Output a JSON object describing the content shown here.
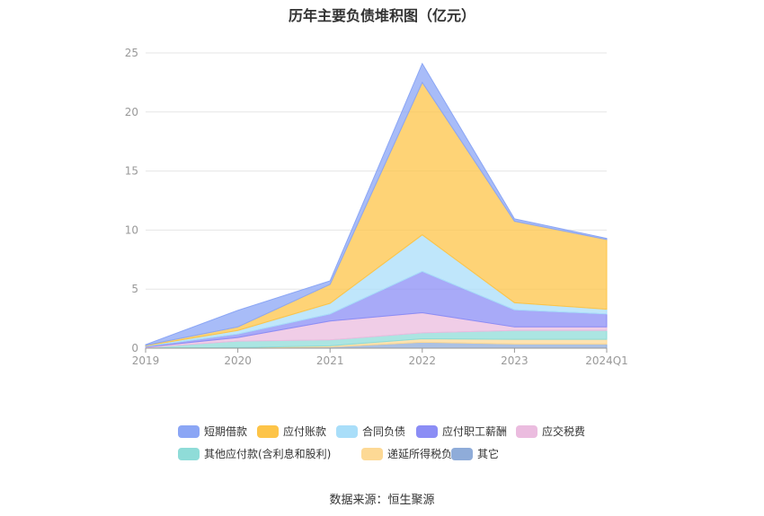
{
  "chart_data": {
    "type": "area",
    "stacked": true,
    "title": "历年主要负债堆积图（亿元）",
    "x": [
      "2019",
      "2020",
      "2021",
      "2022",
      "2023",
      "2024Q1"
    ],
    "ylim": [
      0,
      25
    ],
    "yticks": [
      0,
      5,
      10,
      15,
      20,
      25
    ],
    "grid": true,
    "legend_position": "bottom",
    "series": [
      {
        "name": "其它",
        "color": "#8facd9",
        "values": [
          0.0,
          0.05,
          0.1,
          0.5,
          0.35,
          0.35
        ]
      },
      {
        "name": "递延所得税负债",
        "color": "#fdd995",
        "values": [
          0.0,
          0.0,
          0.1,
          0.3,
          0.4,
          0.4
        ]
      },
      {
        "name": "其他应付款(含利息和股利)",
        "color": "#8fdcd8",
        "values": [
          0.05,
          0.55,
          0.5,
          0.5,
          0.75,
          0.75
        ]
      },
      {
        "name": "应交税费",
        "color": "#ebbcdf",
        "values": [
          0.05,
          0.3,
          1.6,
          1.7,
          0.3,
          0.3
        ]
      },
      {
        "name": "应付职工薪酬",
        "color": "#8b8df5",
        "values": [
          0.05,
          0.3,
          0.6,
          3.5,
          1.45,
          1.1
        ]
      },
      {
        "name": "合同负债",
        "color": "#a9def9",
        "values": [
          0.05,
          0.3,
          0.9,
          3.1,
          0.6,
          0.4
        ]
      },
      {
        "name": "应付账款",
        "color": "#fdc448",
        "values": [
          0.05,
          0.3,
          1.6,
          12.9,
          6.9,
          5.9
        ]
      },
      {
        "name": "短期借款",
        "color": "#8ba6f5",
        "values": [
          0.05,
          1.4,
          0.3,
          1.6,
          0.2,
          0.1
        ]
      }
    ],
    "legend_order": [
      "短期借款",
      "应付账款",
      "合同负债",
      "应付职工薪酬",
      "应交税费",
      "其他应付款(含利息和股利)",
      "递延所得税负债",
      "其它"
    ]
  },
  "source_text": "数据来源：恒生聚源"
}
